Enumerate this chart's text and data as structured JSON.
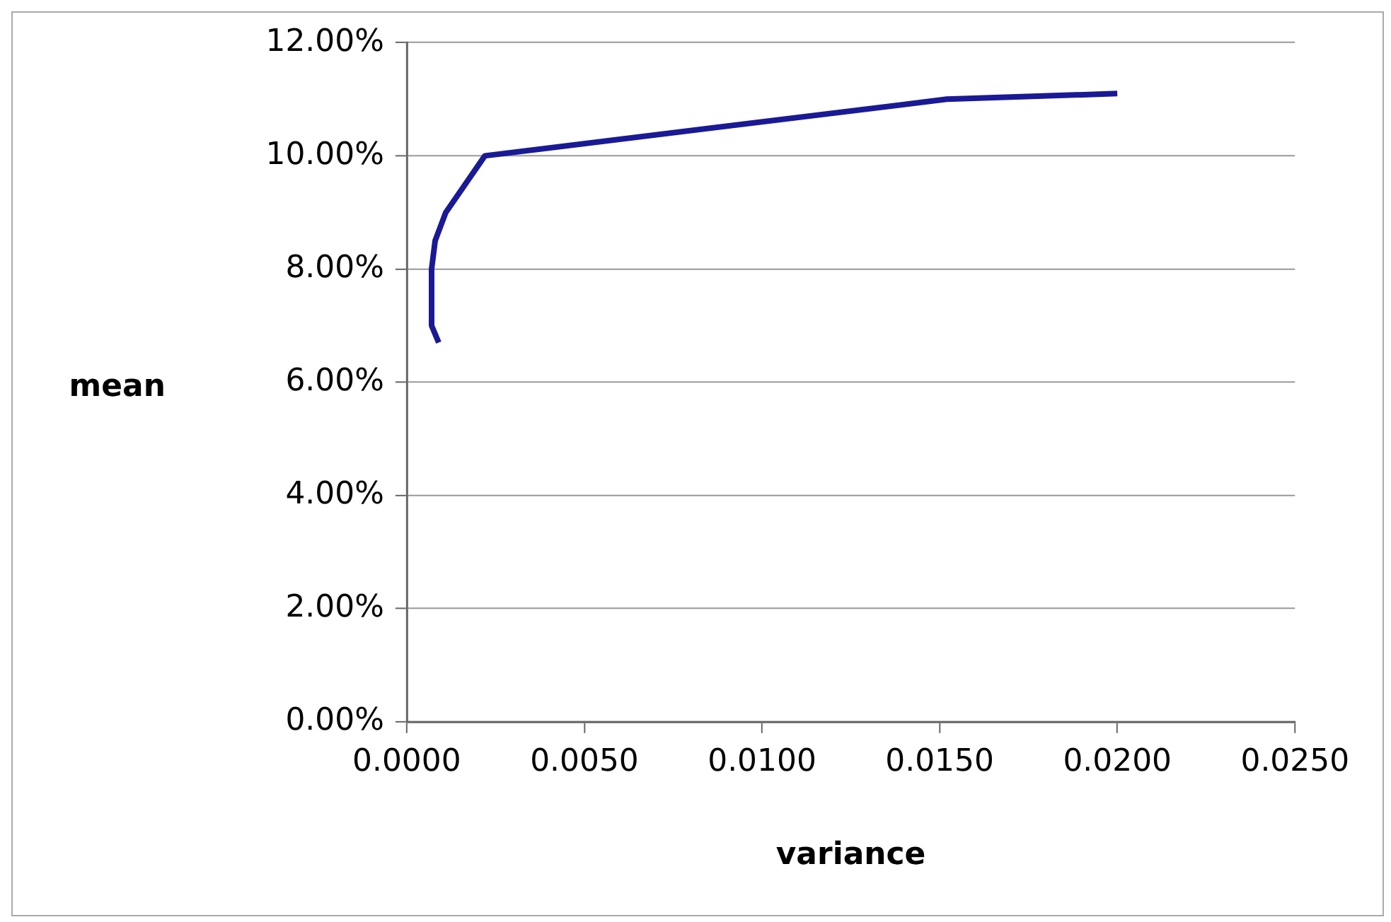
{
  "chart_data": {
    "type": "line",
    "xlabel": "variance",
    "ylabel": "mean",
    "series": [
      {
        "color": "#1a1a96",
        "x": [
          0.0009,
          0.0007,
          0.0007,
          0.0008,
          0.0011,
          0.0022,
          0.0152,
          0.02
        ],
        "values": [
          6.7,
          7.0,
          8.0,
          8.5,
          9.0,
          10.0,
          11.0,
          11.1
        ]
      }
    ],
    "xlim": [
      0,
      0.025
    ],
    "xticks": [
      {
        "value": 0,
        "label": "0.0000"
      },
      {
        "value": 0.005,
        "label": "0.0050"
      },
      {
        "value": 0.01,
        "label": "0.0100"
      },
      {
        "value": 0.015,
        "label": "0.0150"
      },
      {
        "value": 0.02,
        "label": "0.0200"
      },
      {
        "value": 0.025,
        "label": "0.0250"
      }
    ],
    "ylim": [
      0,
      12
    ],
    "yticks": [
      {
        "value": 0,
        "label": "0.00%"
      },
      {
        "value": 2,
        "label": "2.00%"
      },
      {
        "value": 4,
        "label": "4.00%"
      },
      {
        "value": 6,
        "label": "6.00%"
      },
      {
        "value": 8,
        "label": "8.00%"
      },
      {
        "value": 10,
        "label": "10.00%"
      },
      {
        "value": 12,
        "label": "12.00%"
      }
    ],
    "grid": "y",
    "legend": false,
    "marker": "none",
    "line_style": "solid"
  }
}
